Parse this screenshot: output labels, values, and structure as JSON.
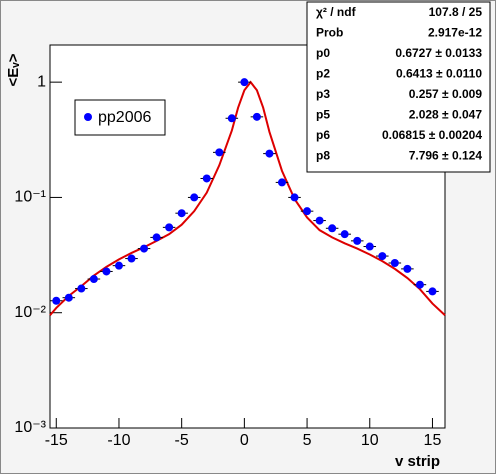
{
  "chart_data": {
    "type": "scatter",
    "x_label": "v strip",
    "y_label": "<Eᵥ>",
    "log_y": true,
    "xlim": [
      -15.5,
      16
    ],
    "ylim": [
      0.001,
      2.1
    ],
    "xticks": [
      -15,
      -10,
      -5,
      0,
      5,
      10,
      15
    ],
    "yticks": [
      {
        "value": 0.001,
        "label": "10⁻³"
      },
      {
        "value": 0.01,
        "label": "10⁻²"
      },
      {
        "value": 0.1,
        "label": "10⁻¹"
      },
      1
    ],
    "xerr": 0.5,
    "series": [
      {
        "name": "pp2006",
        "color": "#0000ff",
        "x": [
          -15,
          -14,
          -13,
          -12,
          -11,
          -10,
          -9,
          -8,
          -7,
          -6,
          -5,
          -4,
          -3,
          -2,
          -1,
          0,
          1,
          2,
          3,
          4,
          5,
          6,
          7,
          8,
          9,
          10,
          11,
          12,
          13,
          14,
          15
        ],
        "values": [
          0.0127,
          0.0135,
          0.0162,
          0.0196,
          0.0228,
          0.0256,
          0.0295,
          0.036,
          0.045,
          0.055,
          0.073,
          0.1,
          0.146,
          0.246,
          0.486,
          1.0,
          0.5,
          0.24,
          0.135,
          0.1,
          0.076,
          0.063,
          0.054,
          0.048,
          0.042,
          0.0375,
          0.031,
          0.027,
          0.024,
          0.0175,
          0.0153
        ]
      }
    ],
    "fit": {
      "color": "#dd0000",
      "x": [
        -15.5,
        -15,
        -14,
        -13,
        -12,
        -11,
        -10,
        -9,
        -8,
        -7,
        -6,
        -5,
        -4,
        -3,
        -2,
        -1,
        -0.5,
        0,
        0.5,
        1,
        1.5,
        2,
        3,
        4,
        5,
        6,
        7,
        8,
        9,
        10,
        11,
        12,
        13,
        14,
        15,
        16
      ],
      "values": [
        0.0095,
        0.011,
        0.014,
        0.017,
        0.021,
        0.025,
        0.029,
        0.033,
        0.037,
        0.042,
        0.048,
        0.058,
        0.076,
        0.11,
        0.19,
        0.38,
        0.6,
        0.85,
        1.0,
        0.85,
        0.6,
        0.37,
        0.17,
        0.097,
        0.067,
        0.052,
        0.045,
        0.04,
        0.036,
        0.032,
        0.028,
        0.024,
        0.02,
        0.016,
        0.012,
        0.0095
      ]
    },
    "stats": [
      [
        "χ² / ndf",
        "107.8 / 25"
      ],
      [
        "Prob",
        "2.917e-12"
      ],
      [
        "p0",
        "0.6727 ± 0.0133"
      ],
      [
        "p2",
        "0.6413 ± 0.0110"
      ],
      [
        "p3",
        "0.257 ± 0.009"
      ],
      [
        "p5",
        "2.028 ± 0.047"
      ],
      [
        "p6",
        "0.06815 ± 0.00204"
      ],
      [
        "p8",
        "7.796 ± 0.124"
      ]
    ]
  }
}
